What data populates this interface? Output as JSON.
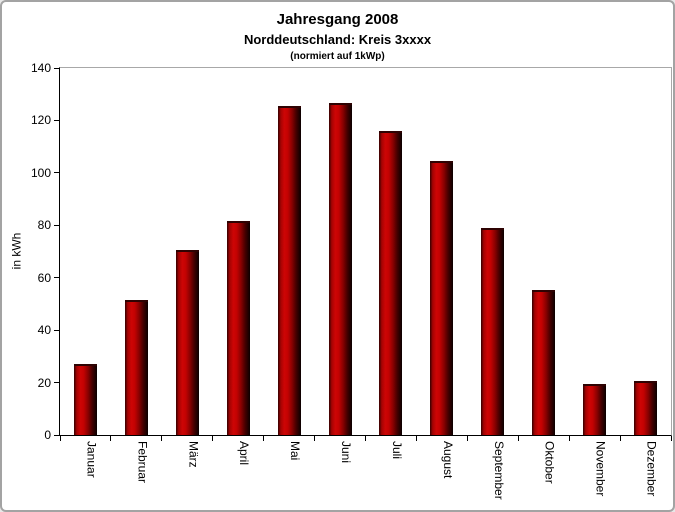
{
  "frame": {
    "background": "#ffffff",
    "border_color": "#a3a3a3"
  },
  "chart_data": {
    "type": "bar",
    "title": "Jahresgang 2008",
    "subtitle": "Norddeutschland: Kreis 3xxxx",
    "subtitle2": "(normiert auf 1kWp)",
    "ylabel": "in kWh",
    "xlabel": "",
    "categories": [
      "Januar",
      "Februar",
      "März",
      "April",
      "Mai",
      "Juni",
      "Juli",
      "August",
      "September",
      "Oktober",
      "November",
      "Dezember"
    ],
    "values": [
      27,
      51.5,
      70.5,
      81.5,
      125.5,
      126.5,
      116,
      104.5,
      79,
      55.5,
      19.5,
      20.5
    ],
    "ylim": [
      0,
      140
    ],
    "yticks": [
      0,
      20,
      40,
      60,
      80,
      100,
      120,
      140
    ],
    "grid": false,
    "legend_position": "none",
    "bar_color_main": "#c30202",
    "bar_color_edge_dark": "#0a0000",
    "bar_label_rotation_deg": 90,
    "axis_color": "#000000",
    "plot_border_color": "#a8a8a8"
  }
}
